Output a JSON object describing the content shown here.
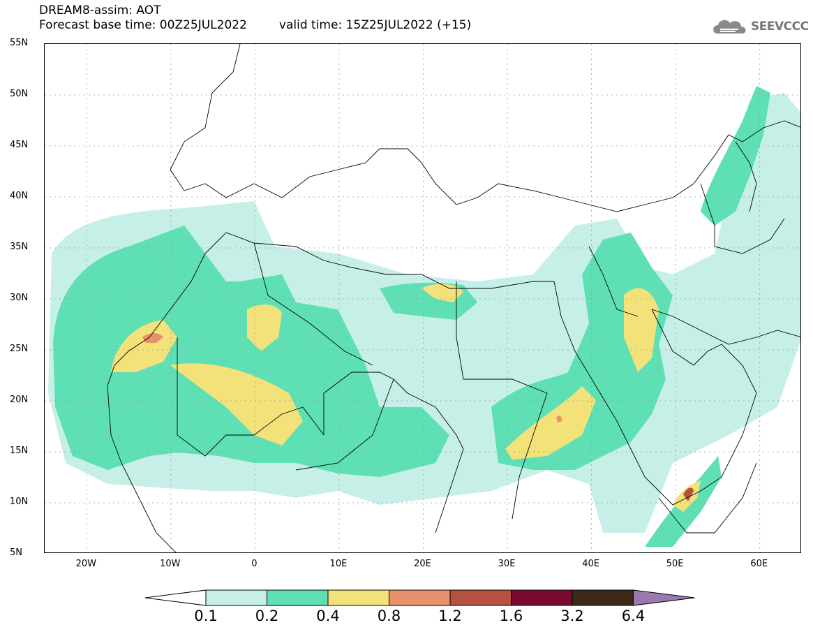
{
  "header": {
    "line1": "DREAM8-assim: AOT",
    "base_time": "Forecast base time: 00Z25JUL2022",
    "valid_time": "valid time: 15Z25JUL2022 (+15)"
  },
  "logo": {
    "text": "SEEVCCC",
    "icon": "cloud-icon"
  },
  "map": {
    "projection": "lat-lon",
    "lon_range": [
      -25,
      65
    ],
    "lat_range": [
      5,
      55
    ],
    "grid": "dotted",
    "lat_labels": [
      "55N",
      "50N",
      "45N",
      "40N",
      "35N",
      "30N",
      "25N",
      "20N",
      "15N",
      "10N",
      "5N"
    ],
    "lon_labels": [
      "20W",
      "10W",
      "0",
      "10E",
      "20E",
      "30E",
      "40E",
      "50E",
      "60E"
    ]
  },
  "colorbar": {
    "levels": [
      "0.1",
      "0.2",
      "0.4",
      "0.8",
      "1.2",
      "1.6",
      "3.2",
      "6.4"
    ],
    "colors": [
      "#ffffff",
      "#c6efe8",
      "#5fe0b4",
      "#f3e27a",
      "#e9916a",
      "#b5513f",
      "#7a0a2e",
      "#3a2a17",
      "#9a78b0"
    ]
  }
}
